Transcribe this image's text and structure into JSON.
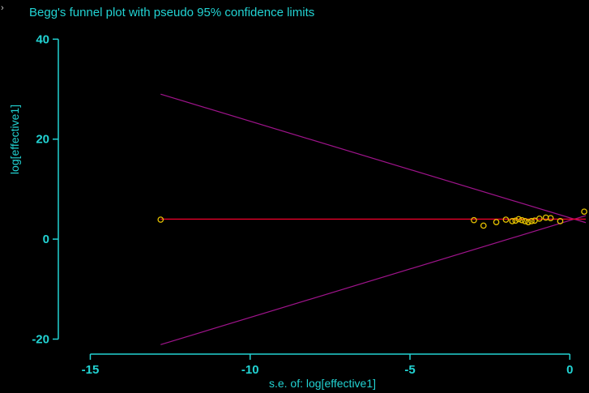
{
  "chart_data": {
    "type": "scatter",
    "title": "Begg's funnel plot with pseudo 95% confidence limits",
    "xlabel": "s.e. of: log[effective1]",
    "ylabel": "log[effective1]",
    "xlim": [
      -16,
      0.6
    ],
    "ylim": [
      -23,
      42
    ],
    "x_ticks": [
      -15,
      -10,
      -5,
      0
    ],
    "y_ticks": [
      -20,
      0,
      20,
      40
    ],
    "grid": false,
    "colors": {
      "background": "#000000",
      "text": "#22d3d3",
      "points": "#e6c200",
      "summary_line": "#e8002a",
      "pseudo_ci": "#a0148c"
    },
    "points": [
      {
        "x": -12.8,
        "y": 3.9
      },
      {
        "x": -3.0,
        "y": 3.8
      },
      {
        "x": -2.7,
        "y": 2.7
      },
      {
        "x": -2.3,
        "y": 3.4
      },
      {
        "x": -2.0,
        "y": 3.9
      },
      {
        "x": -1.8,
        "y": 3.6
      },
      {
        "x": -1.7,
        "y": 3.7
      },
      {
        "x": -1.6,
        "y": 4.0
      },
      {
        "x": -1.5,
        "y": 3.8
      },
      {
        "x": -1.4,
        "y": 3.6
      },
      {
        "x": -1.3,
        "y": 3.4
      },
      {
        "x": -1.2,
        "y": 3.6
      },
      {
        "x": -1.1,
        "y": 3.7
      },
      {
        "x": -0.95,
        "y": 4.1
      },
      {
        "x": -0.75,
        "y": 4.3
      },
      {
        "x": -0.6,
        "y": 4.2
      },
      {
        "x": -0.3,
        "y": 3.6
      },
      {
        "x": 0.45,
        "y": 5.5
      }
    ],
    "summary_line": {
      "x": [
        -12.8,
        0.5
      ],
      "y": [
        4.0,
        4.0
      ]
    },
    "pseudo_ci": {
      "upper": {
        "x": [
          -12.8,
          0.5
        ],
        "y": [
          29.0,
          3.3
        ]
      },
      "lower": {
        "x": [
          -12.8,
          0.5
        ],
        "y": [
          -21.1,
          4.7
        ]
      }
    }
  }
}
